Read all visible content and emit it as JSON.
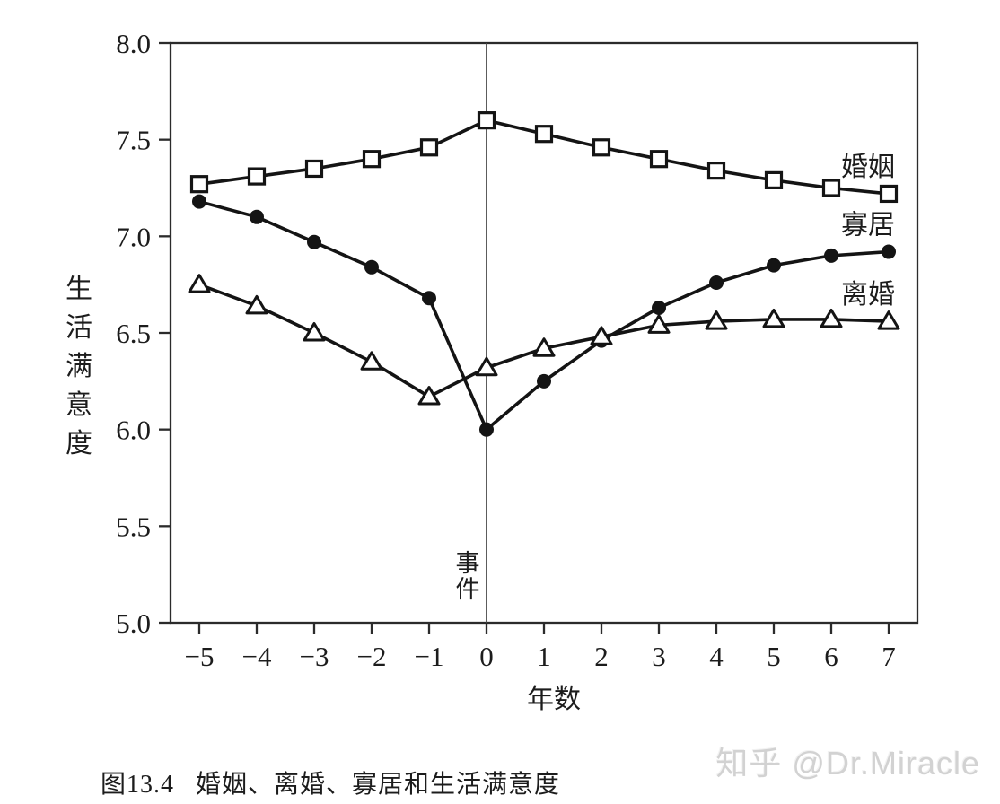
{
  "page": {
    "background": "#ffffff",
    "caption": {
      "label": "图13.4",
      "title": "婚姻、离婚、寡居和生活满意度"
    },
    "watermark": "知乎 @Dr.Miracle"
  },
  "chart_data": {
    "type": "line",
    "title": "",
    "xlabel": "年数",
    "ylabel": "生活满意度",
    "xlim": [
      -5.5,
      7.5
    ],
    "ylim": [
      5.0,
      8.0
    ],
    "x_ticks": [
      -5,
      -4,
      -3,
      -2,
      -1,
      0,
      1,
      2,
      3,
      4,
      5,
      6,
      7
    ],
    "y_ticks": [
      5.0,
      5.5,
      6.0,
      6.5,
      7.0,
      7.5,
      8.0
    ],
    "grid": false,
    "frame": "box",
    "legend_position": "inline-right",
    "x": [
      -5,
      -4,
      -3,
      -2,
      -1,
      0,
      1,
      2,
      3,
      4,
      5,
      6,
      7
    ],
    "series": [
      {
        "name": "婚姻",
        "marker": "square",
        "marker_fill": "open",
        "values": [
          7.27,
          7.31,
          7.35,
          7.4,
          7.46,
          7.6,
          7.53,
          7.46,
          7.4,
          7.34,
          7.29,
          7.25,
          7.22
        ]
      },
      {
        "name": "寡居",
        "marker": "circle",
        "marker_fill": "filled",
        "values": [
          7.18,
          7.1,
          6.97,
          6.84,
          6.68,
          6.0,
          6.25,
          6.46,
          6.63,
          6.76,
          6.85,
          6.9,
          6.92
        ]
      },
      {
        "name": "离婚",
        "marker": "triangle",
        "marker_fill": "open",
        "values": [
          6.75,
          6.64,
          6.5,
          6.35,
          6.17,
          6.32,
          6.42,
          6.48,
          6.54,
          6.56,
          6.57,
          6.57,
          6.56
        ]
      }
    ],
    "event_line": {
      "x": 0,
      "label": "事件"
    }
  },
  "colors": {
    "line": "#141414",
    "axis": "#2b2b2b",
    "text": "#1c1c1c",
    "event_line": "#4a4a4a",
    "watermark": "#d2d2d2"
  }
}
